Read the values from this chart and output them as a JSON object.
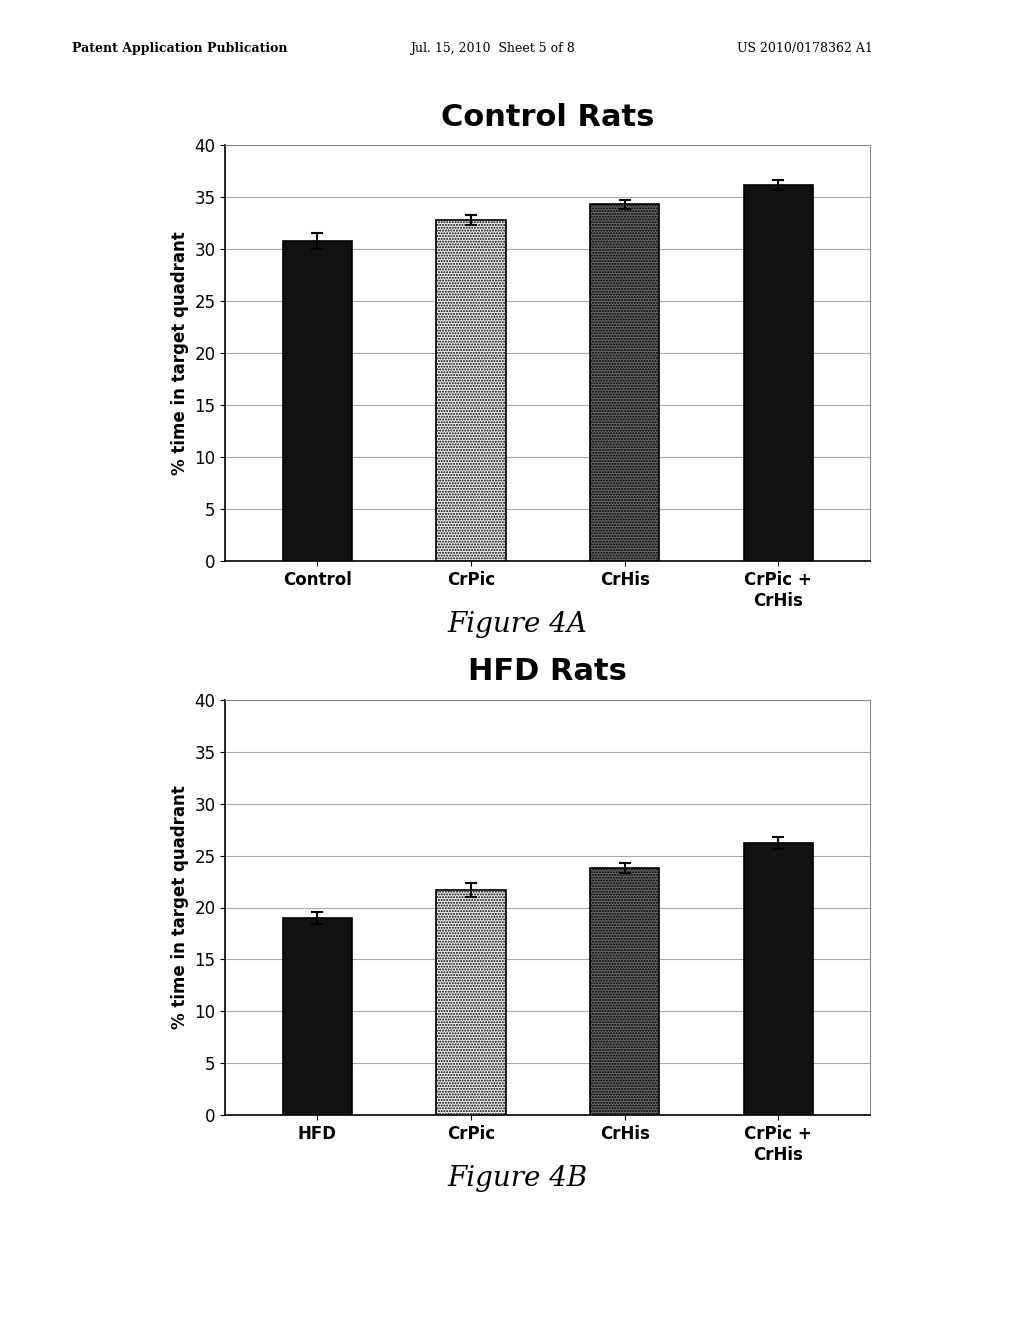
{
  "fig_width": 10.24,
  "fig_height": 13.2,
  "background_color": "#ffffff",
  "header_left": "Patent Application Publication",
  "header_mid": "Jul. 15, 2010  Sheet 5 of 8",
  "header_right": "US 2010/0178362 A1",
  "chart_a": {
    "title": "Control Rats",
    "title_fontsize": 22,
    "title_fontweight": "bold",
    "categories": [
      "Control",
      "CrPic",
      "CrHis",
      "CrPic +\nCrHis"
    ],
    "values": [
      30.8,
      32.8,
      34.3,
      36.2
    ],
    "errors": [
      0.8,
      0.5,
      0.4,
      0.5
    ],
    "bar_colors": [
      "#111111",
      "#f0f0f0",
      "#666666",
      "#111111"
    ],
    "bar_edgecolors": [
      "#000000",
      "#000000",
      "#000000",
      "#000000"
    ],
    "bar_hatches": [
      null,
      "stipple_light",
      "stipple_dark",
      null
    ],
    "ylim": [
      0,
      40
    ],
    "yticks": [
      0,
      5,
      10,
      15,
      20,
      25,
      30,
      35,
      40
    ],
    "ylabel": "% time in target quadrant",
    "ylabel_fontsize": 12,
    "figure_label": "Figure 4A",
    "figure_label_fontsize": 20,
    "bar_width": 0.45
  },
  "chart_b": {
    "title": "HFD Rats",
    "title_fontsize": 22,
    "title_fontweight": "bold",
    "categories": [
      "HFD",
      "CrPic",
      "CrHis",
      "CrPic +\nCrHis"
    ],
    "values": [
      19.0,
      21.7,
      23.8,
      26.2
    ],
    "errors": [
      0.6,
      0.7,
      0.5,
      0.6
    ],
    "bar_colors": [
      "#111111",
      "#f0f0f0",
      "#666666",
      "#111111"
    ],
    "bar_edgecolors": [
      "#000000",
      "#000000",
      "#000000",
      "#000000"
    ],
    "bar_hatches": [
      null,
      "stipple_light",
      "stipple_dark",
      null
    ],
    "ylim": [
      0,
      40
    ],
    "yticks": [
      0,
      5,
      10,
      15,
      20,
      25,
      30,
      35,
      40
    ],
    "ylabel": "% time in target quadrant",
    "ylabel_fontsize": 12,
    "figure_label": "Figure 4B",
    "figure_label_fontsize": 20,
    "bar_width": 0.45
  }
}
